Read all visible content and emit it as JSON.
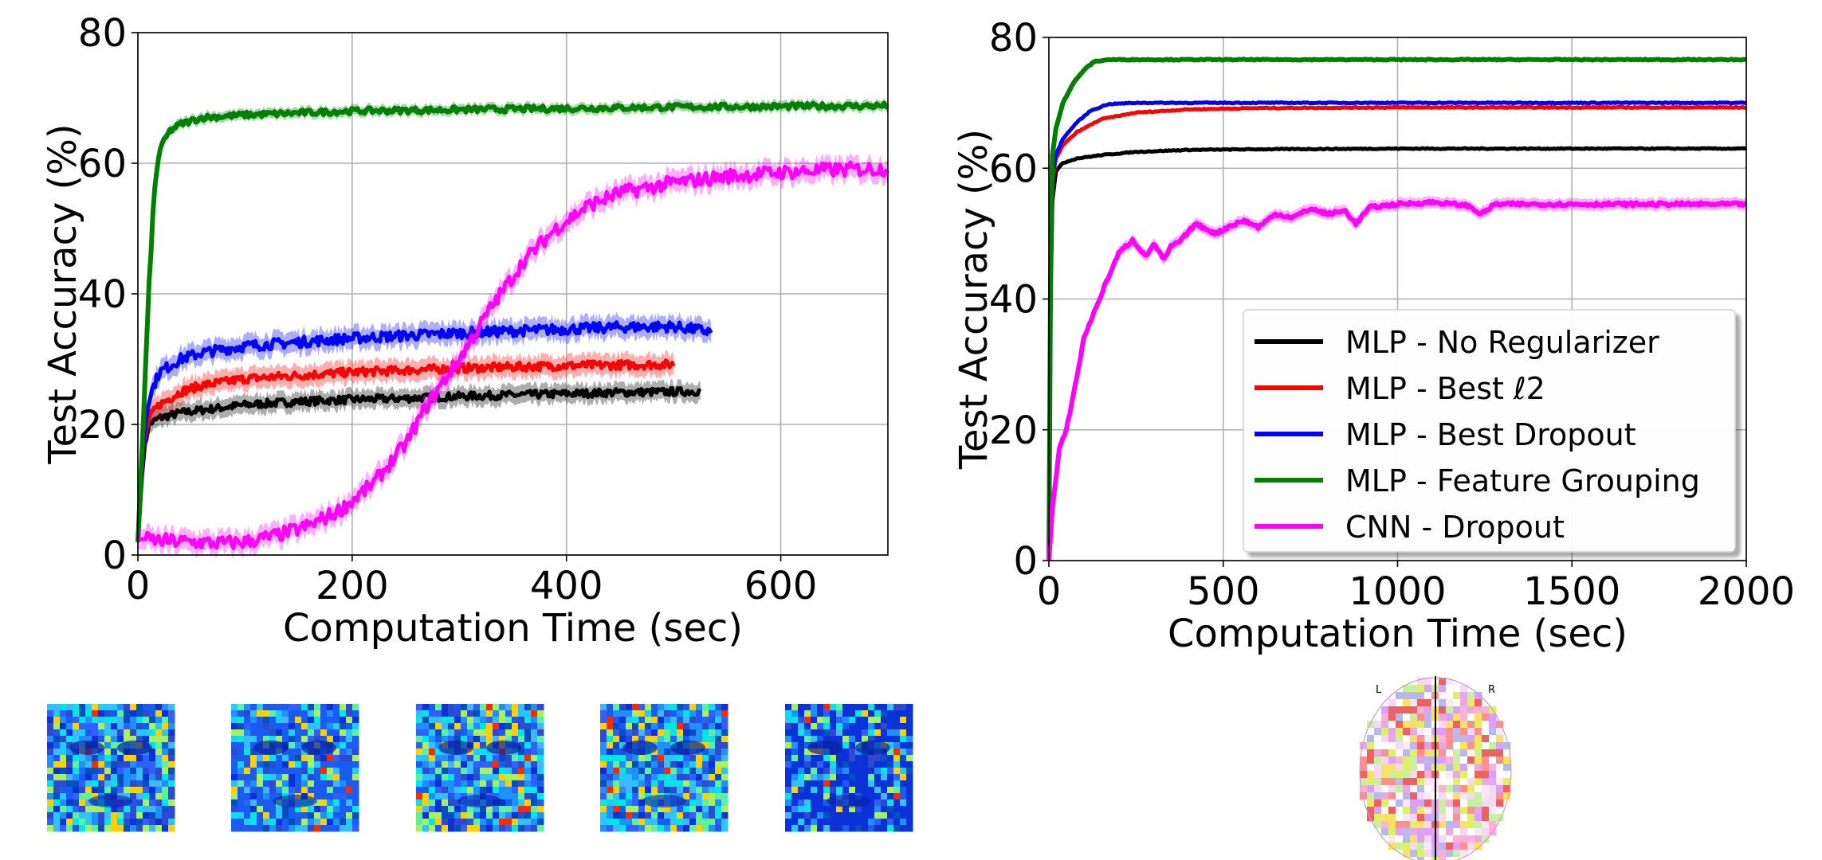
{
  "chart_data": [
    {
      "type": "line",
      "xlabel": "Computation Time (sec)",
      "ylabel": "Test Accuracy (%)",
      "xlim": [
        0,
        700
      ],
      "ylim": [
        0,
        80
      ],
      "xticks": [
        0,
        200,
        400,
        600
      ],
      "yticks": [
        0,
        20,
        40,
        60,
        80
      ],
      "grid": true,
      "series": [
        {
          "name": "MLP - No Regularizer",
          "color": "#000000",
          "x": [
            0,
            5,
            10,
            20,
            40,
            60,
            100,
            150,
            200,
            250,
            300,
            350,
            400,
            450,
            500,
            525
          ],
          "y": [
            2,
            15,
            20,
            21,
            21.8,
            22.2,
            23,
            23.5,
            23.8,
            24.0,
            24.3,
            24.5,
            24.7,
            24.9,
            25.0,
            25.1
          ]
        },
        {
          "name": "MLP - Best ℓ2",
          "color": "#ff0000",
          "x": [
            0,
            5,
            10,
            20,
            40,
            60,
            100,
            150,
            200,
            250,
            300,
            350,
            400,
            450,
            500
          ],
          "y": [
            2,
            16,
            21,
            23,
            25,
            26,
            27,
            27.5,
            28,
            28.3,
            28.6,
            28.8,
            29,
            29.1,
            29.2
          ]
        },
        {
          "name": "MLP - Best Dropout",
          "color": "#0000ff",
          "x": [
            0,
            5,
            10,
            20,
            40,
            60,
            100,
            150,
            200,
            250,
            300,
            350,
            400,
            450,
            500,
            535
          ],
          "y": [
            2,
            17,
            24,
            28,
            30,
            31,
            32,
            32.6,
            33.2,
            33.6,
            34,
            34.3,
            34.6,
            34.9,
            35,
            34.2
          ]
        },
        {
          "name": "MLP - Feature Grouping",
          "color": "#008000",
          "x": [
            0,
            5,
            10,
            15,
            20,
            30,
            40,
            60,
            100,
            150,
            200,
            300,
            400,
            500,
            600,
            700
          ],
          "y": [
            2,
            20,
            40,
            55,
            62,
            65,
            66,
            67,
            67.4,
            67.7,
            68,
            68.2,
            68.4,
            68.6,
            68.7,
            68.8
          ]
        },
        {
          "name": "CNN - Dropout",
          "color": "#ff00ff",
          "x": [
            0,
            20,
            50,
            80,
            100,
            130,
            160,
            190,
            220,
            250,
            270,
            300,
            330,
            360,
            390,
            420,
            450,
            500,
            550,
            600,
            650,
            700
          ],
          "y": [
            2.5,
            2.2,
            2.0,
            1.8,
            2.0,
            3,
            4.5,
            7,
            11,
            17,
            23,
            30,
            38,
            45,
            50,
            53.5,
            55.5,
            57,
            58,
            58.6,
            59,
            59.2
          ]
        }
      ]
    },
    {
      "type": "line",
      "xlabel": "Computation Time (sec)",
      "ylabel": "Test Accuracy (%)",
      "xlim": [
        0,
        2000
      ],
      "ylim": [
        0,
        80
      ],
      "xticks": [
        0,
        500,
        1000,
        1500,
        2000
      ],
      "yticks": [
        0,
        20,
        40,
        60,
        80
      ],
      "grid": true,
      "legend": "lower-right",
      "series": [
        {
          "name": "MLP - No Regularizer",
          "color": "#000000",
          "x": [
            0,
            5,
            10,
            20,
            40,
            80,
            150,
            250,
            400,
            600,
            1000,
            2000
          ],
          "y": [
            0,
            40,
            55,
            59.5,
            60.8,
            61.5,
            62,
            62.5,
            62.8,
            62.9,
            63,
            63
          ]
        },
        {
          "name": "MLP - Best ℓ2",
          "color": "#ff0000",
          "x": [
            0,
            5,
            10,
            20,
            40,
            80,
            150,
            250,
            400,
            600,
            1000,
            2000
          ],
          "y": [
            0,
            42,
            58,
            61.5,
            63.5,
            65.5,
            67.5,
            68.5,
            69,
            69.2,
            69.3,
            69.3
          ]
        },
        {
          "name": "MLP - Best Dropout",
          "color": "#0000ff",
          "x": [
            0,
            5,
            10,
            20,
            40,
            80,
            120,
            170,
            250,
            500,
            1000,
            2000
          ],
          "y": [
            0,
            42,
            59,
            62,
            64.5,
            67,
            68.8,
            69.8,
            70,
            70,
            70,
            70
          ]
        },
        {
          "name": "MLP - Feature Grouping",
          "color": "#008000",
          "x": [
            0,
            5,
            10,
            20,
            40,
            70,
            100,
            130,
            170,
            300,
            1000,
            2000
          ],
          "y": [
            0,
            45,
            62,
            66,
            70,
            73,
            75,
            76.3,
            76.6,
            76.6,
            76.6,
            76.6
          ]
        },
        {
          "name": "CNN - Dropout",
          "color": "#ff00ff",
          "x": [
            0,
            10,
            30,
            50,
            80,
            100,
            130,
            160,
            200,
            240,
            280,
            300,
            330,
            350,
            380,
            420,
            480,
            520,
            560,
            600,
            650,
            700,
            750,
            800,
            850,
            880,
            920,
            1000,
            1100,
            1200,
            1240,
            1280,
            1400,
            1600,
            2000
          ],
          "y": [
            0,
            8,
            17,
            20,
            28,
            34,
            38,
            42,
            47,
            49,
            46.5,
            48.5,
            46,
            48,
            49,
            51.5,
            50,
            51.2,
            52,
            51,
            53,
            52.5,
            53.8,
            53,
            53.5,
            51.5,
            54,
            54.5,
            54.8,
            54.3,
            53,
            54.5,
            54.5,
            54.5,
            54.5
          ]
        }
      ]
    }
  ],
  "images": {
    "faces": [
      {
        "icon": "face-parcellation-1"
      },
      {
        "icon": "face-parcellation-2"
      },
      {
        "icon": "face-parcellation-3"
      },
      {
        "icon": "face-parcellation-4"
      },
      {
        "icon": "face-parcellation-5"
      }
    ],
    "brain": {
      "icon": "brain-parcellation",
      "left_label": "L",
      "right_label": "R"
    }
  }
}
